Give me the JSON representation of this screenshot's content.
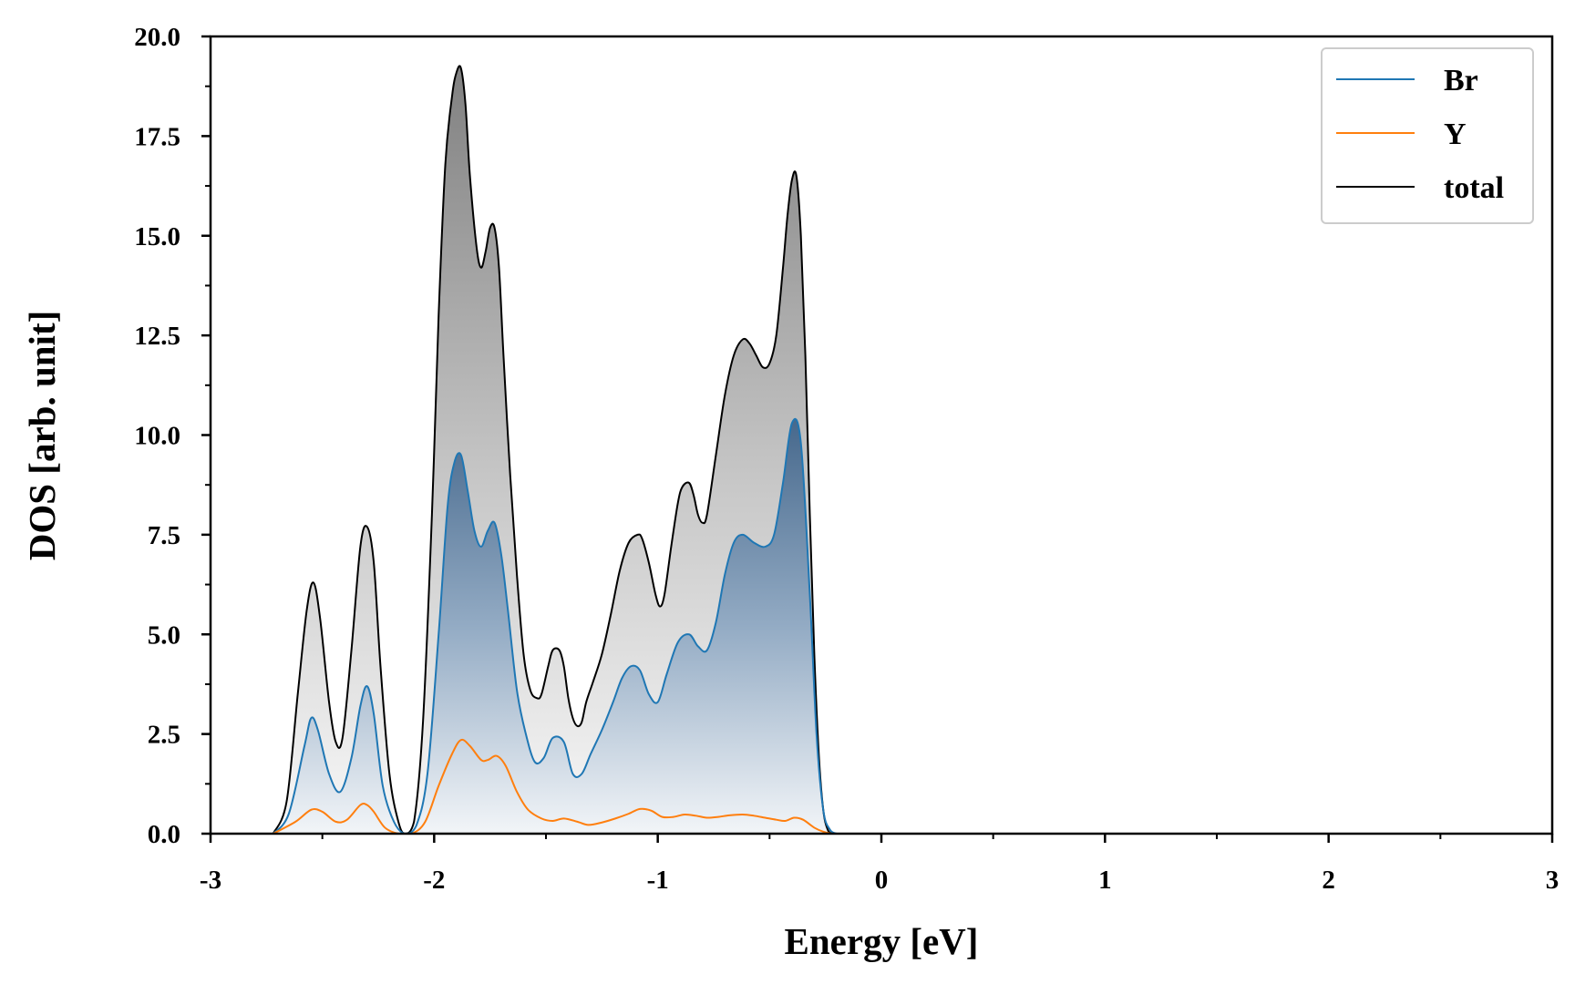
{
  "chart_data": {
    "type": "area",
    "xlabel": "Energy [eV]",
    "ylabel": "DOS [arb. unit]",
    "xlim": [
      -3,
      3
    ],
    "ylim": [
      0,
      20
    ],
    "xticks": [
      -3,
      -2,
      -1,
      0,
      1,
      2,
      3
    ],
    "xtick_labels": [
      "-3",
      "-2",
      "-1",
      "0",
      "1",
      "2",
      "3"
    ],
    "yticks": [
      0,
      2.5,
      5,
      7.5,
      10,
      12.5,
      15,
      17.5,
      20
    ],
    "ytick_labels": [
      "0.0",
      "2.5",
      "5.0",
      "7.5",
      "10.0",
      "12.5",
      "15.0",
      "17.5",
      "20.0"
    ],
    "grid": false,
    "legend_position": "top-right",
    "series": [
      {
        "name": "Br",
        "color": "#1f77b4",
        "fill": "blue-gradient",
        "x": [
          -2.72,
          -2.65,
          -2.58,
          -2.55,
          -2.52,
          -2.47,
          -2.42,
          -2.37,
          -2.33,
          -2.3,
          -2.27,
          -2.23,
          -2.18,
          -2.13,
          -2.08,
          -2.03,
          -1.98,
          -1.94,
          -1.91,
          -1.88,
          -1.85,
          -1.82,
          -1.79,
          -1.76,
          -1.73,
          -1.7,
          -1.67,
          -1.63,
          -1.59,
          -1.55,
          -1.51,
          -1.47,
          -1.42,
          -1.38,
          -1.34,
          -1.3,
          -1.25,
          -1.2,
          -1.16,
          -1.12,
          -1.08,
          -1.04,
          -1.0,
          -0.96,
          -0.91,
          -0.86,
          -0.82,
          -0.78,
          -0.74,
          -0.7,
          -0.66,
          -0.62,
          -0.57,
          -0.52,
          -0.48,
          -0.44,
          -0.4,
          -0.36,
          -0.32,
          -0.29,
          -0.26,
          -0.23,
          -0.2
        ],
        "values": [
          0.0,
          0.5,
          2.2,
          2.9,
          2.6,
          1.5,
          1.05,
          1.9,
          3.2,
          3.7,
          3.0,
          1.2,
          0.3,
          0.0,
          0.2,
          1.5,
          5.0,
          8.2,
          9.3,
          9.5,
          8.6,
          7.6,
          7.2,
          7.6,
          7.8,
          7.0,
          5.6,
          3.6,
          2.5,
          1.8,
          1.9,
          2.4,
          2.3,
          1.5,
          1.5,
          2.0,
          2.6,
          3.3,
          3.9,
          4.2,
          4.1,
          3.5,
          3.3,
          4.0,
          4.8,
          5.0,
          4.7,
          4.6,
          5.3,
          6.5,
          7.3,
          7.5,
          7.3,
          7.2,
          7.5,
          8.8,
          10.3,
          9.8,
          6.0,
          2.5,
          0.6,
          0.1,
          0.0
        ]
      },
      {
        "name": "Y",
        "color": "#ff7f0e",
        "fill": "none",
        "x": [
          -2.72,
          -2.62,
          -2.55,
          -2.5,
          -2.44,
          -2.39,
          -2.33,
          -2.3,
          -2.27,
          -2.22,
          -2.16,
          -2.1,
          -2.04,
          -1.98,
          -1.92,
          -1.88,
          -1.84,
          -1.79,
          -1.76,
          -1.72,
          -1.68,
          -1.63,
          -1.58,
          -1.52,
          -1.47,
          -1.42,
          -1.36,
          -1.31,
          -1.25,
          -1.19,
          -1.13,
          -1.08,
          -1.03,
          -0.98,
          -0.93,
          -0.88,
          -0.83,
          -0.78,
          -0.73,
          -0.68,
          -0.62,
          -0.57,
          -0.52,
          -0.47,
          -0.43,
          -0.39,
          -0.35,
          -0.3,
          -0.26,
          -0.22
        ],
        "values": [
          0.0,
          0.3,
          0.6,
          0.55,
          0.3,
          0.35,
          0.72,
          0.72,
          0.55,
          0.15,
          0.0,
          0.0,
          0.3,
          1.2,
          2.0,
          2.35,
          2.2,
          1.85,
          1.85,
          1.95,
          1.7,
          1.05,
          0.6,
          0.38,
          0.32,
          0.38,
          0.3,
          0.22,
          0.28,
          0.38,
          0.5,
          0.62,
          0.58,
          0.42,
          0.42,
          0.48,
          0.45,
          0.4,
          0.42,
          0.46,
          0.48,
          0.45,
          0.4,
          0.35,
          0.32,
          0.4,
          0.35,
          0.15,
          0.05,
          0.0
        ]
      },
      {
        "name": "total",
        "color": "#000000",
        "fill": "gray-gradient",
        "x": [
          -2.72,
          -2.66,
          -2.61,
          -2.57,
          -2.54,
          -2.51,
          -2.47,
          -2.44,
          -2.41,
          -2.37,
          -2.33,
          -2.3,
          -2.27,
          -2.24,
          -2.2,
          -2.16,
          -2.13,
          -2.09,
          -2.05,
          -2.01,
          -1.98,
          -1.95,
          -1.92,
          -1.9,
          -1.88,
          -1.86,
          -1.84,
          -1.81,
          -1.79,
          -1.77,
          -1.75,
          -1.73,
          -1.71,
          -1.69,
          -1.66,
          -1.63,
          -1.6,
          -1.57,
          -1.54,
          -1.52,
          -1.49,
          -1.47,
          -1.44,
          -1.42,
          -1.4,
          -1.38,
          -1.36,
          -1.34,
          -1.32,
          -1.29,
          -1.25,
          -1.21,
          -1.17,
          -1.13,
          -1.09,
          -1.07,
          -1.04,
          -1.01,
          -0.99,
          -0.97,
          -0.94,
          -0.91,
          -0.89,
          -0.86,
          -0.84,
          -0.82,
          -0.8,
          -0.78,
          -0.74,
          -0.7,
          -0.66,
          -0.62,
          -0.59,
          -0.56,
          -0.53,
          -0.5,
          -0.47,
          -0.44,
          -0.42,
          -0.4,
          -0.38,
          -0.36,
          -0.34,
          -0.32,
          -0.3,
          -0.28,
          -0.26,
          -0.24,
          -0.22
        ],
        "values": [
          0.0,
          0.8,
          3.5,
          5.6,
          6.3,
          5.4,
          3.3,
          2.3,
          2.4,
          4.6,
          7.2,
          7.7,
          6.8,
          4.2,
          1.5,
          0.3,
          0.0,
          0.3,
          2.8,
          8.0,
          13.0,
          16.8,
          18.5,
          19.1,
          19.2,
          18.3,
          16.5,
          14.7,
          14.2,
          14.6,
          15.2,
          15.2,
          14.2,
          12.0,
          9.0,
          6.5,
          4.5,
          3.6,
          3.4,
          3.5,
          4.2,
          4.6,
          4.6,
          4.2,
          3.4,
          2.9,
          2.7,
          2.8,
          3.3,
          3.8,
          4.5,
          5.5,
          6.6,
          7.3,
          7.5,
          7.4,
          6.8,
          6.0,
          5.7,
          6.0,
          7.2,
          8.3,
          8.7,
          8.8,
          8.5,
          8.0,
          7.8,
          8.0,
          9.5,
          11.0,
          12.0,
          12.4,
          12.3,
          12.0,
          11.7,
          11.8,
          12.5,
          14.2,
          15.5,
          16.4,
          16.5,
          15.0,
          12.0,
          8.0,
          4.5,
          2.0,
          0.6,
          0.1,
          0.0
        ]
      }
    ]
  }
}
